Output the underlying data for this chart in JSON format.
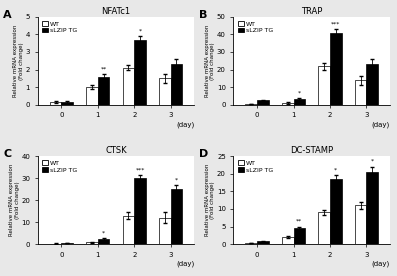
{
  "panels": [
    {
      "label": "A",
      "title": "NFATc1",
      "ylim": [
        0,
        5
      ],
      "yticks": [
        0,
        1,
        2,
        3,
        4,
        5
      ],
      "days": [
        0,
        1,
        2,
        3
      ],
      "wt_mean": [
        0.15,
        1.0,
        2.1,
        1.5
      ],
      "wt_err": [
        0.05,
        0.1,
        0.15,
        0.25
      ],
      "tg_mean": [
        0.15,
        1.6,
        3.7,
        2.3
      ],
      "tg_err": [
        0.05,
        0.15,
        0.2,
        0.3
      ],
      "annotations": [
        "",
        "**",
        "*",
        ""
      ],
      "ann_on_tg": [
        false,
        true,
        true,
        false
      ]
    },
    {
      "label": "B",
      "title": "TRAP",
      "ylim": [
        0,
        50
      ],
      "yticks": [
        0,
        10,
        20,
        30,
        40,
        50
      ],
      "days": [
        0,
        1,
        2,
        3
      ],
      "wt_mean": [
        0.5,
        1.0,
        22.0,
        14.0
      ],
      "wt_err": [
        0.2,
        0.5,
        2.0,
        2.5
      ],
      "tg_mean": [
        2.5,
        3.5,
        41.0,
        23.0
      ],
      "tg_err": [
        0.3,
        0.5,
        2.0,
        3.0
      ],
      "annotations": [
        "",
        "*",
        "***",
        ""
      ],
      "ann_on_tg": [
        false,
        true,
        true,
        false
      ]
    },
    {
      "label": "C",
      "title": "CTSK",
      "ylim": [
        0,
        40
      ],
      "yticks": [
        0,
        10,
        20,
        30,
        40
      ],
      "days": [
        0,
        1,
        2,
        3
      ],
      "wt_mean": [
        0.3,
        0.8,
        13.0,
        12.0
      ],
      "wt_err": [
        0.1,
        0.2,
        1.5,
        2.5
      ],
      "tg_mean": [
        0.5,
        2.5,
        30.0,
        25.0
      ],
      "tg_err": [
        0.1,
        0.4,
        1.5,
        2.0
      ],
      "annotations": [
        "",
        "*",
        "***",
        "*"
      ],
      "ann_on_tg": [
        false,
        true,
        true,
        true
      ]
    },
    {
      "label": "D",
      "title": "DC-STAMP",
      "ylim": [
        0,
        25
      ],
      "yticks": [
        0,
        5,
        10,
        15,
        20,
        25
      ],
      "days": [
        0,
        1,
        2,
        3
      ],
      "wt_mean": [
        0.3,
        2.0,
        9.0,
        11.0
      ],
      "wt_err": [
        0.1,
        0.3,
        0.8,
        1.0
      ],
      "tg_mean": [
        0.8,
        4.5,
        18.5,
        20.5
      ],
      "tg_err": [
        0.2,
        0.5,
        1.0,
        1.5
      ],
      "annotations": [
        "",
        "**",
        "*",
        "*"
      ],
      "ann_on_tg": [
        false,
        true,
        true,
        true
      ]
    }
  ],
  "wt_color": "white",
  "tg_color": "black",
  "bar_edge": "black",
  "bar_width": 0.32,
  "ylabel": "Relative mRNA expression\n(Fold change)",
  "xlabel": "(day)",
  "legend_labels": [
    "WT",
    "sLZIP TG"
  ],
  "figure_bg": "#e8e8e8",
  "axes_bg": "white"
}
